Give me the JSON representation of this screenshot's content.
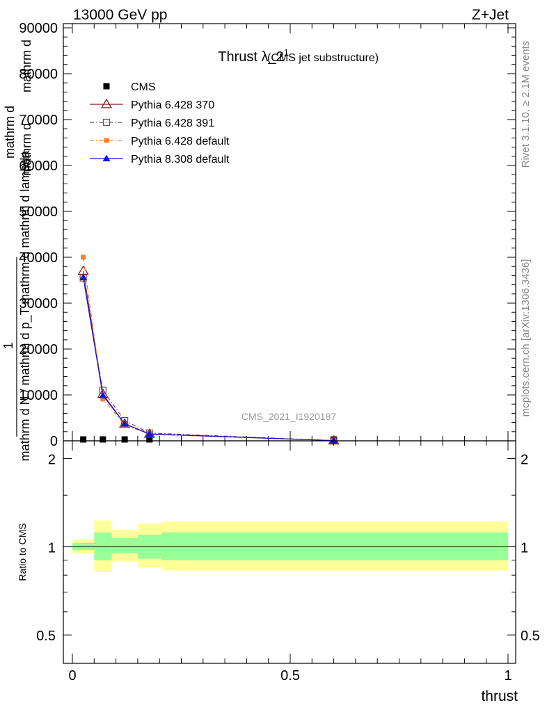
{
  "header": {
    "energy_label": "13000 GeV pp",
    "process_label": "Z+Jet"
  },
  "side_labels": {
    "rivet": "Rivet 3.1.10, ≥ 2.1M events",
    "mcplots": "mcplots.cern.ch [arXiv:1306.3436]"
  },
  "chart_data": [
    {
      "type": "line",
      "title_main": "Thrust λ_2",
      "title_sup": "1",
      "title_note": "(CMS jet substructure)",
      "watermark": "CMS_2021_I1920187",
      "ylabel_parts": [
        "mathrm d",
        "1",
        "mathrm d N / mathrm d p_T mathrm d mathrm d lambda",
        "mathrm d",
        "mathrm d"
      ],
      "xlim": [
        0,
        1
      ],
      "ylim": [
        0,
        90000
      ],
      "yticks": [
        {
          "v": 0,
          "label": "0"
        },
        {
          "v": 10000,
          "label": "10000"
        },
        {
          "v": 20000,
          "label": "20000"
        },
        {
          "v": 30000,
          "label": "30000"
        },
        {
          "v": 40000,
          "label": "40000"
        },
        {
          "v": 50000,
          "label": "50000"
        },
        {
          "v": 60000,
          "label": "60000"
        },
        {
          "v": 70000,
          "label": "70000"
        },
        {
          "v": 80000,
          "label": "80000"
        },
        {
          "v": 90000,
          "label": "90000"
        }
      ],
      "grid": false,
      "legend_position": "top-left",
      "series": [
        {
          "name": "CMS",
          "color": "#000000",
          "marker": "square-filled",
          "line": "none",
          "x": [
            0.025,
            0.07,
            0.12,
            0.177,
            0.6
          ],
          "y": [
            0,
            0,
            0,
            0,
            0
          ]
        },
        {
          "name": "Pythia 6.428 370",
          "color": "#8b1a1a",
          "marker": "triangle-open",
          "line": "solid",
          "x": [
            0.025,
            0.07,
            0.12,
            0.177,
            0.6
          ],
          "y": [
            37000,
            10200,
            3700,
            1500,
            50
          ]
        },
        {
          "name": "Pythia 6.428 391",
          "color": "#7a4a4a",
          "marker": "square-open",
          "line": "dashdot",
          "x": [
            0.025,
            0.07,
            0.12,
            0.177,
            0.6
          ],
          "y": [
            35500,
            11000,
            4400,
            1700,
            60
          ]
        },
        {
          "name": "Pythia 6.428 default",
          "color": "#f08030",
          "marker": "square-filled-small",
          "line": "dashdot",
          "x": [
            0.025,
            0.07,
            0.12,
            0.177,
            0.6
          ],
          "y": [
            40000,
            9100,
            3500,
            1400,
            40
          ]
        },
        {
          "name": "Pythia 8.308 default",
          "color": "#1010e0",
          "marker": "triangle-filled",
          "line": "solid",
          "x": [
            0.025,
            0.07,
            0.12,
            0.177,
            0.6
          ],
          "y": [
            35600,
            9900,
            3700,
            1500,
            50
          ]
        }
      ]
    },
    {
      "type": "area",
      "ylabel": "Ratio to CMS",
      "xlabel": "thrust",
      "xlim": [
        0,
        1
      ],
      "ylim": [
        0.4,
        2.3
      ],
      "log_y": true,
      "xticks": [
        {
          "v": 0,
          "label": "0"
        },
        {
          "v": 0.5,
          "label": "0.5"
        },
        {
          "v": 1,
          "label": "1"
        }
      ],
      "yticks": [
        {
          "v": 0.5,
          "label": "0.5"
        },
        {
          "v": 1,
          "label": "1"
        },
        {
          "v": 2,
          "label": "2"
        }
      ],
      "reference_line": 1,
      "bands": [
        {
          "x0": 0.0,
          "x1": 0.05,
          "outer": [
            0.95,
            1.06
          ],
          "inner": [
            0.975,
            1.03
          ]
        },
        {
          "x0": 0.05,
          "x1": 0.09,
          "outer": [
            0.82,
            1.23
          ],
          "inner": [
            0.9,
            1.12
          ]
        },
        {
          "x0": 0.09,
          "x1": 0.15,
          "outer": [
            0.89,
            1.14
          ],
          "inner": [
            0.95,
            1.07
          ]
        },
        {
          "x0": 0.15,
          "x1": 0.205,
          "outer": [
            0.85,
            1.2
          ],
          "inner": [
            0.91,
            1.1
          ]
        },
        {
          "x0": 0.205,
          "x1": 1.0,
          "outer": [
            0.83,
            1.22
          ],
          "inner": [
            0.9,
            1.12
          ]
        }
      ],
      "colors": {
        "outer": "#ffff99",
        "inner": "#99ff99"
      }
    }
  ]
}
